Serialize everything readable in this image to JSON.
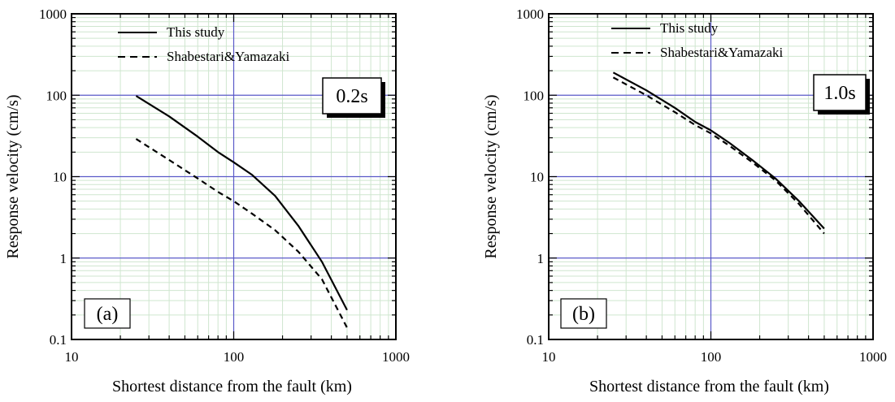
{
  "chart_data": [
    {
      "type": "line",
      "panel_label": "(a)",
      "period_label": "0.2s",
      "xlabel": "Shortest distance from the fault (km)",
      "ylabel": "Response velocity (cm/s)",
      "xscale": "log",
      "yscale": "log",
      "xlim": [
        10,
        1000
      ],
      "ylim": [
        0.1,
        1000
      ],
      "x_ticks": [
        "10",
        "100",
        "1000"
      ],
      "y_ticks": [
        "0.1",
        "1",
        "10",
        "100",
        "1000"
      ],
      "grid": true,
      "legend_position": "top-left",
      "series": [
        {
          "name": "This study",
          "style": "solid",
          "x": [
            25,
            40,
            60,
            80,
            100,
            130,
            180,
            250,
            350,
            500
          ],
          "y": [
            98,
            55,
            31,
            20,
            15,
            10.5,
            5.8,
            2.5,
            0.9,
            0.23
          ]
        },
        {
          "name": "Shabestari&Yamazaki",
          "style": "dashed",
          "x": [
            25,
            40,
            60,
            80,
            100,
            130,
            180,
            250,
            350,
            500
          ],
          "y": [
            29,
            16,
            9.5,
            6.5,
            5.0,
            3.5,
            2.2,
            1.2,
            0.55,
            0.14
          ]
        }
      ]
    },
    {
      "type": "line",
      "panel_label": "(b)",
      "period_label": "1.0s",
      "xlabel": "Shortest distance from the fault (km)",
      "ylabel": "Response velocity (cm/s)",
      "xscale": "log",
      "yscale": "log",
      "xlim": [
        10,
        1000
      ],
      "ylim": [
        0.1,
        1000
      ],
      "x_ticks": [
        "10",
        "100",
        "1000"
      ],
      "y_ticks": [
        "0.1",
        "1",
        "10",
        "100",
        "1000"
      ],
      "grid": true,
      "legend_position": "top-left",
      "series": [
        {
          "name": "This study",
          "style": "solid",
          "x": [
            25,
            40,
            60,
            80,
            100,
            130,
            180,
            250,
            350,
            500
          ],
          "y": [
            190,
            115,
            70,
            47,
            37,
            26,
            16,
            9.5,
            5,
            2.3
          ]
        },
        {
          "name": "Shabestari&Yamazaki",
          "style": "dashed",
          "x": [
            25,
            40,
            60,
            80,
            100,
            130,
            180,
            250,
            350,
            500
          ],
          "y": [
            165,
            100,
            62,
            43,
            34,
            24,
            15,
            9,
            4.6,
            2.0
          ]
        }
      ]
    }
  ]
}
